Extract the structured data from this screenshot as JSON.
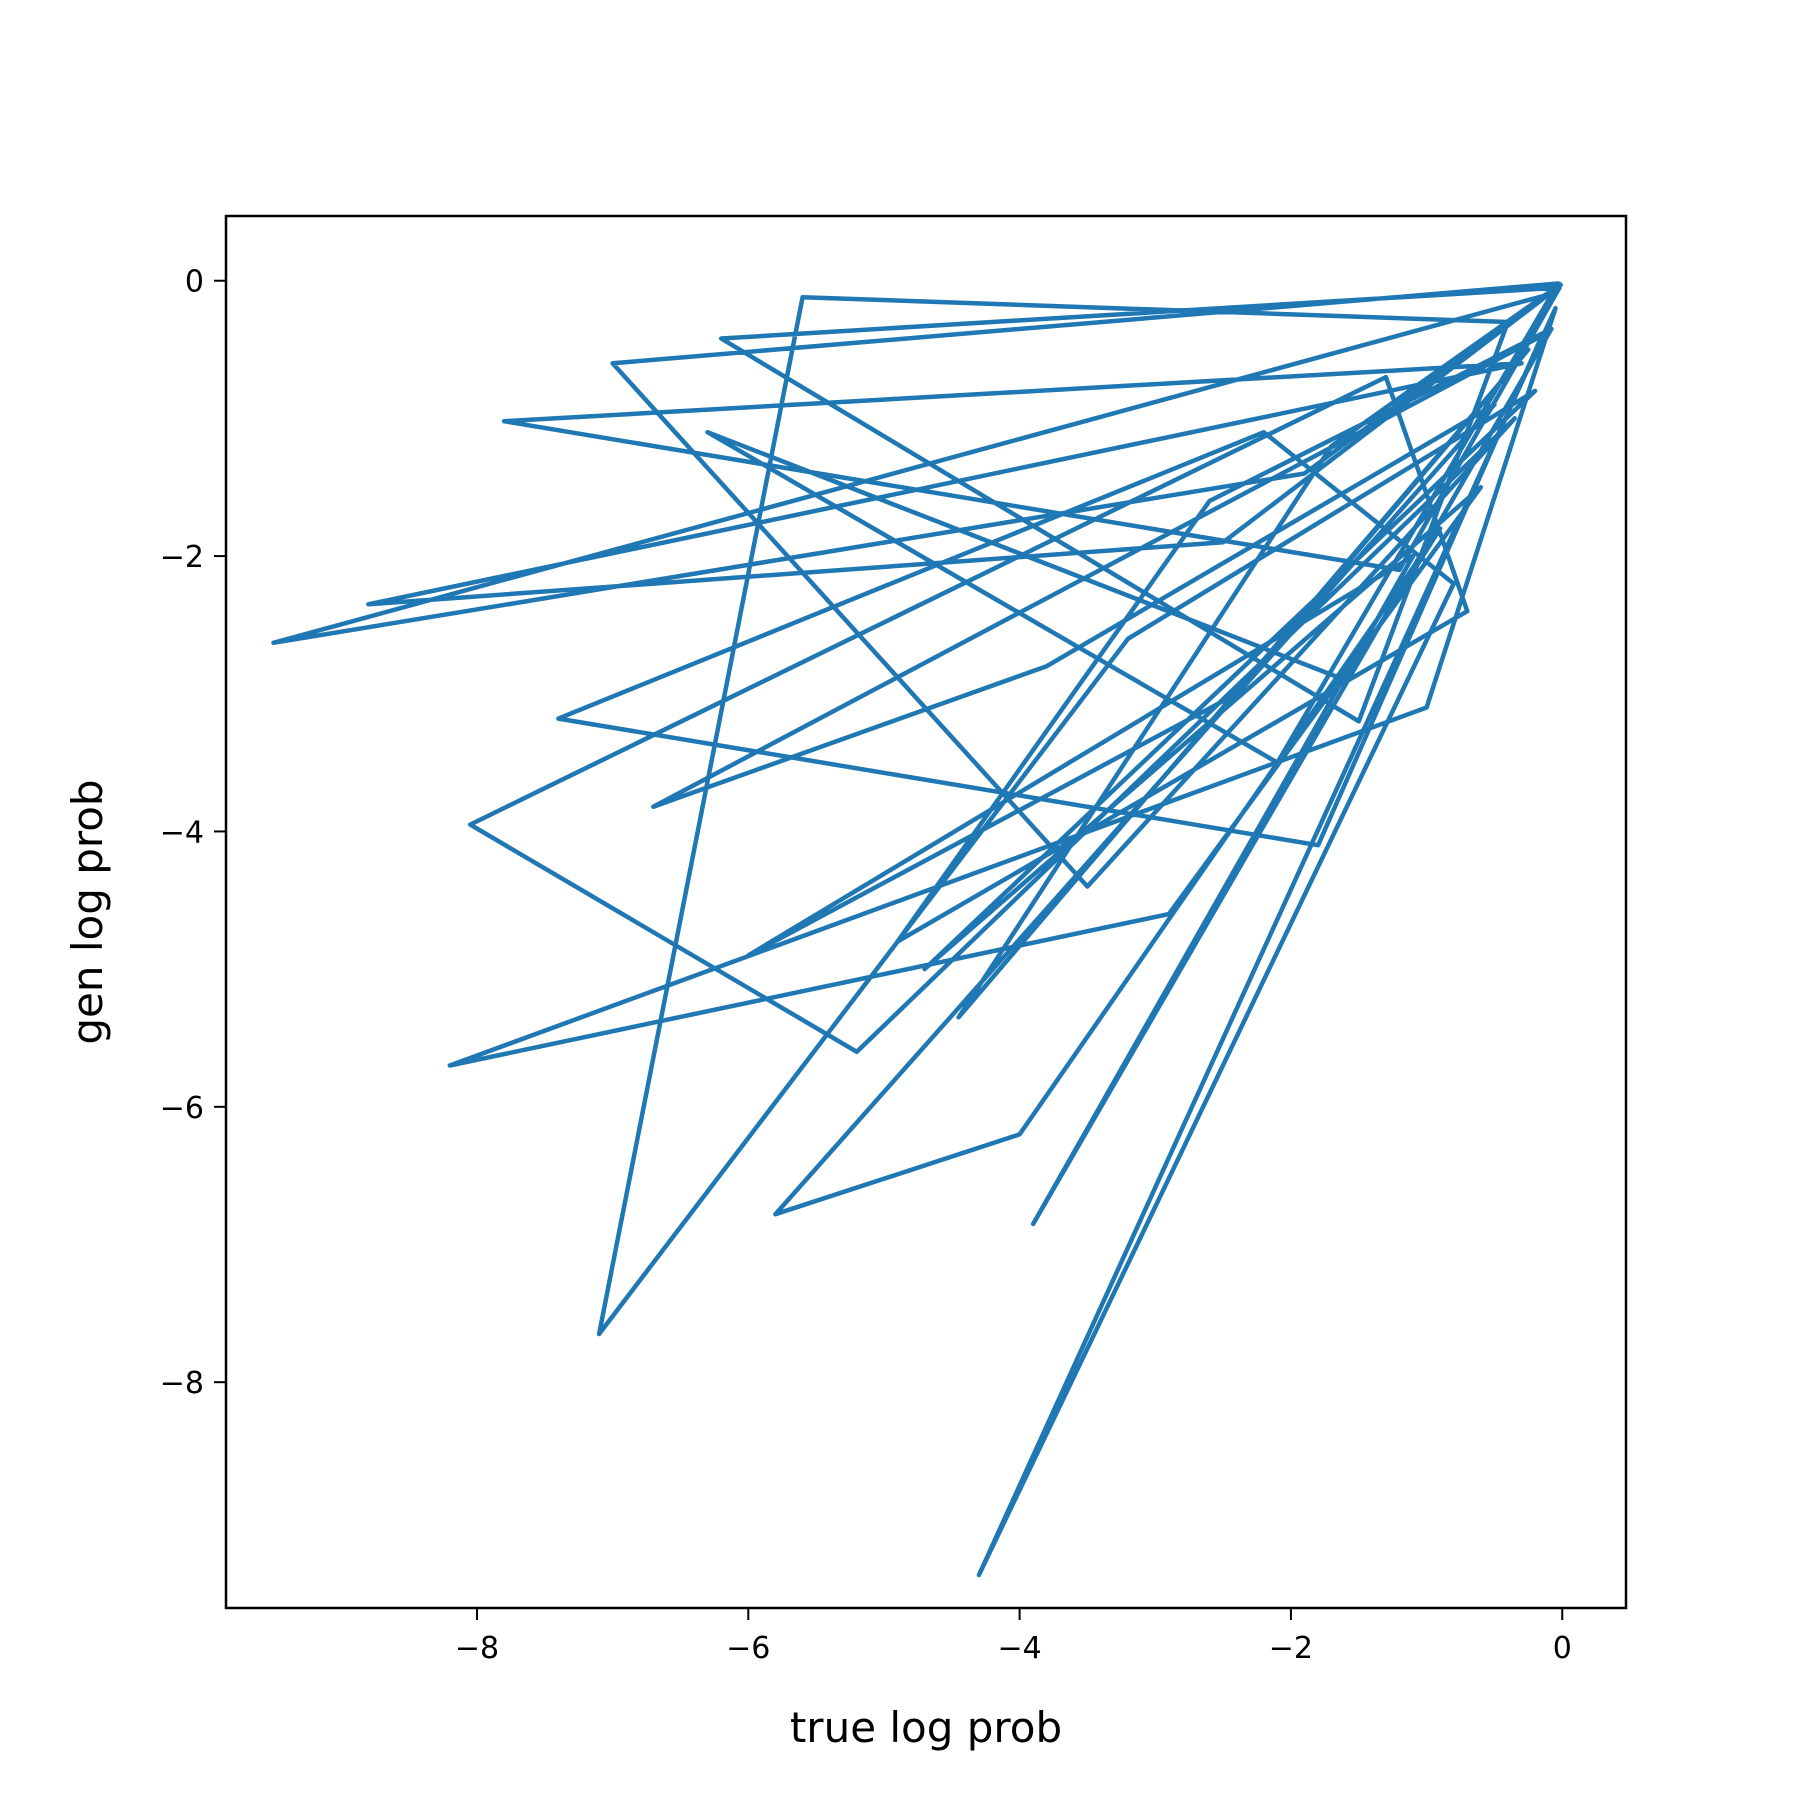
{
  "chart_data": {
    "type": "line",
    "title": "",
    "xlabel": "true log prob",
    "ylabel": "gen log prob",
    "xlim": [
      -9.85,
      0.47
    ],
    "ylim": [
      -9.64,
      0.47
    ],
    "x_ticks": [
      -8,
      -6,
      -4,
      -2,
      0
    ],
    "y_ticks": [
      0,
      -2,
      -4,
      -6,
      -8
    ],
    "x_tick_labels": [
      "−8",
      "−6",
      "−4",
      "−2",
      "0"
    ],
    "y_tick_labels": [
      "0",
      "−2",
      "−4",
      "−6",
      "−8"
    ],
    "grid": false,
    "legend": "none",
    "series": [
      {
        "color": "#1f77b4",
        "x": [
          0.0,
          -1.9,
          -9.5,
          -0.1,
          -2.5,
          -8.8,
          -0.3,
          -7.8,
          -1.2,
          -0.02,
          -6.2,
          -1.5,
          -0.4,
          -5.6,
          -7.1,
          -3.2,
          -0.2,
          -4.7,
          -0.6,
          -2.9,
          -8.2,
          -1.0,
          -0.05,
          -4.3,
          -0.8,
          -2.2,
          -7.4,
          -1.8,
          -0.15,
          -6.7,
          -3.8,
          -0.5,
          -5.8,
          -4.0,
          -0.9,
          -1.6,
          -6.3,
          -2.1,
          -0.03,
          -7.0,
          -3.5,
          -0.35,
          -5.2,
          -8.05,
          -1.3,
          -0.7,
          -4.9,
          -2.6,
          -0.08,
          -3.9,
          -1.1,
          -6.0,
          -2.4,
          -0.25,
          -4.45,
          -1.7,
          -0.02
        ],
        "y": [
          -0.02,
          -1.4,
          -2.63,
          -0.1,
          -1.9,
          -2.35,
          -0.6,
          -1.02,
          -2.1,
          -0.05,
          -0.42,
          -3.2,
          -0.3,
          -0.12,
          -7.65,
          -2.6,
          -0.8,
          -5.0,
          -1.5,
          -4.6,
          -5.7,
          -3.1,
          -0.2,
          -9.4,
          -2.2,
          -1.1,
          -3.18,
          -4.1,
          -0.4,
          -3.82,
          -2.8,
          -0.9,
          -6.78,
          -6.2,
          -1.8,
          -2.9,
          -1.1,
          -3.5,
          -0.02,
          -0.6,
          -4.4,
          -1.0,
          -5.6,
          -3.95,
          -0.7,
          -2.4,
          -4.8,
          -1.6,
          -0.35,
          -6.85,
          -2.0,
          -4.9,
          -3.0,
          -0.5,
          -5.35,
          -1.2,
          -0.03
        ]
      }
    ]
  }
}
